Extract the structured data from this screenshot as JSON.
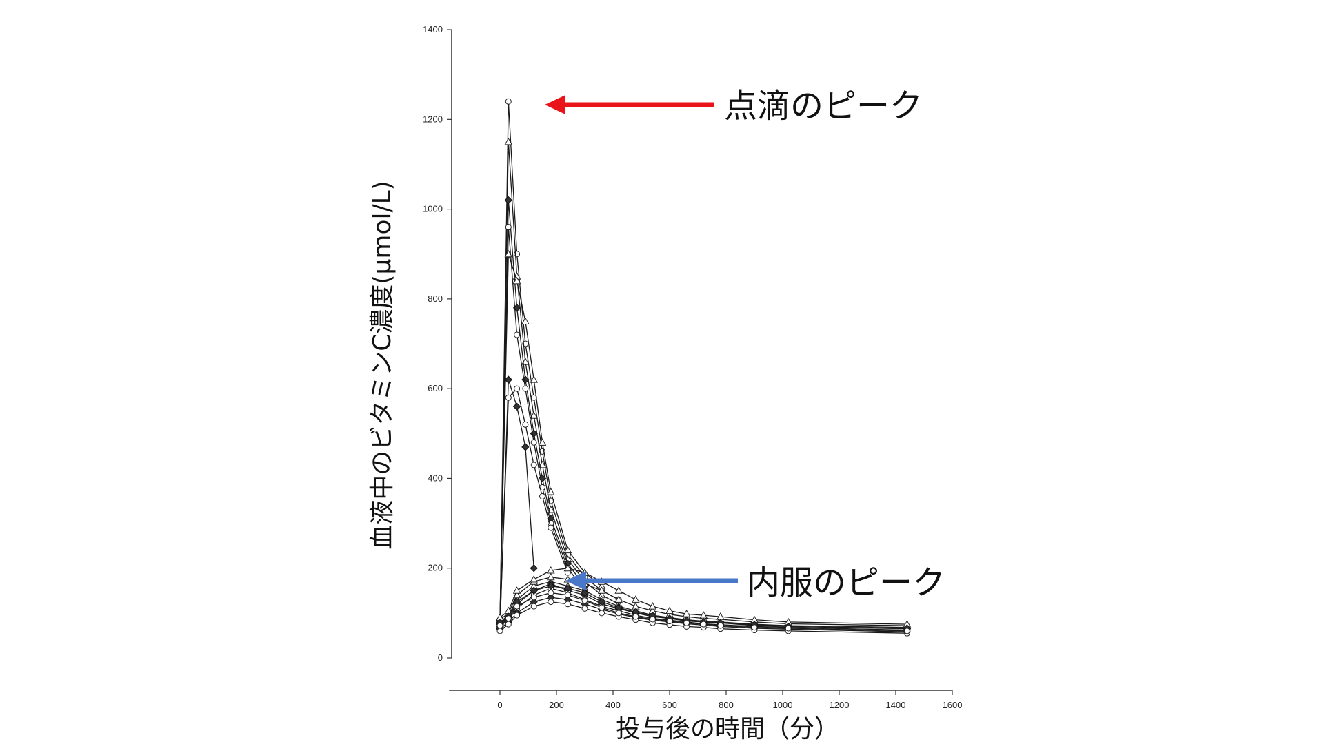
{
  "chart_data": {
    "type": "line",
    "ylabel": "血液中のビタミンC濃度(μmol/L)",
    "xlabel": "投与後の時間（分）",
    "xlim": [
      -180,
      1600
    ],
    "ylim": [
      0,
      1400
    ],
    "x_ticks": [
      "0",
      "200",
      "400",
      "600",
      "800",
      "1000",
      "1200",
      "1400",
      "1600"
    ],
    "y_ticks": [
      "0",
      "200",
      "400",
      "600",
      "800",
      "1000",
      "1200",
      "1400"
    ],
    "grid": false,
    "legend": "none",
    "annotations": [
      {
        "text": "点滴のピーク",
        "arrow_color": "#e8141a",
        "target_x": 30,
        "target_y": 1240
      },
      {
        "text": "内服のピーク",
        "arrow_color": "#4a78c8",
        "target_x": 240,
        "target_y": 180
      }
    ],
    "series": [
      {
        "x": [
          0,
          30,
          60,
          90,
          120,
          150,
          180,
          240,
          300,
          360,
          420
        ],
        "y": [
          80,
          1240,
          900,
          700,
          580,
          460,
          350,
          230,
          180,
          150,
          130
        ]
      },
      {
        "x": [
          0,
          30,
          60,
          90,
          120,
          150,
          180,
          240,
          300,
          360,
          420
        ],
        "y": [
          75,
          1150,
          850,
          660,
          540,
          430,
          330,
          220,
          170,
          140,
          120
        ]
      },
      {
        "x": [
          0,
          30,
          60,
          90,
          120,
          150,
          180,
          240,
          300
        ],
        "y": [
          70,
          1020,
          780,
          620,
          500,
          400,
          310,
          210,
          160
        ]
      },
      {
        "x": [
          0,
          30,
          60,
          90,
          120,
          150,
          180,
          240,
          300
        ],
        "y": [
          85,
          960,
          720,
          600,
          480,
          380,
          300,
          200,
          150
        ]
      },
      {
        "x": [
          0,
          30,
          60,
          90,
          120,
          150,
          180,
          240,
          300,
          360
        ],
        "y": [
          90,
          900,
          840,
          750,
          620,
          480,
          370,
          240,
          190,
          160
        ]
      },
      {
        "x": [
          0,
          30,
          60,
          90,
          120
        ],
        "y": [
          65,
          620,
          560,
          470,
          200
        ]
      },
      {
        "x": [
          0,
          30,
          60,
          90,
          120,
          150,
          180,
          240
        ],
        "y": [
          70,
          580,
          600,
          520,
          430,
          360,
          290,
          190
        ]
      },
      {
        "x": [
          0,
          30,
          60,
          120,
          180,
          240,
          300,
          360,
          420,
          480,
          540,
          600,
          660,
          720,
          780,
          900,
          1020,
          1440
        ],
        "y": [
          80,
          95,
          130,
          160,
          170,
          160,
          150,
          130,
          115,
          105,
          95,
          90,
          85,
          82,
          80,
          75,
          72,
          68
        ]
      },
      {
        "x": [
          0,
          30,
          60,
          120,
          180,
          240,
          300,
          360,
          420,
          480,
          540,
          600,
          660,
          720,
          780,
          900,
          1020,
          1440
        ],
        "y": [
          75,
          90,
          120,
          150,
          165,
          150,
          140,
          120,
          110,
          100,
          92,
          88,
          82,
          80,
          78,
          72,
          70,
          65
        ]
      },
      {
        "x": [
          0,
          30,
          60,
          120,
          180,
          240,
          300,
          360,
          420,
          480,
          540,
          600,
          660,
          720,
          780,
          900,
          1020,
          1440
        ],
        "y": [
          70,
          85,
          110,
          140,
          155,
          145,
          130,
          115,
          105,
          95,
          88,
          84,
          80,
          76,
          74,
          70,
          68,
          62
        ]
      },
      {
        "x": [
          0,
          30,
          60,
          120,
          180,
          240,
          300,
          360,
          420,
          480,
          540,
          600,
          660,
          720,
          780,
          900,
          1020,
          1440
        ],
        "y": [
          85,
          100,
          140,
          170,
          180,
          175,
          165,
          150,
          130,
          115,
          105,
          97,
          92,
          88,
          86,
          80,
          76,
          72
        ]
      },
      {
        "x": [
          0,
          30,
          60,
          120,
          180,
          240,
          300,
          360,
          420,
          480,
          540,
          600,
          660,
          720,
          780,
          900,
          1020,
          1440
        ],
        "y": [
          65,
          80,
          100,
          125,
          135,
          130,
          120,
          108,
          98,
          90,
          84,
          80,
          76,
          73,
          70,
          66,
          64,
          58
        ]
      },
      {
        "x": [
          0,
          30,
          60,
          120,
          180,
          240,
          300,
          360,
          420,
          480,
          540,
          600,
          660,
          720,
          780,
          900,
          1020,
          1440
        ],
        "y": [
          60,
          75,
          95,
          115,
          125,
          120,
          110,
          100,
          92,
          85,
          78,
          74,
          70,
          68,
          65,
          62,
          60,
          55
        ]
      },
      {
        "x": [
          0,
          30,
          60,
          120,
          180,
          240,
          300,
          360,
          420,
          480,
          540,
          600,
          660,
          720,
          780,
          900,
          1020,
          1440
        ],
        "y": [
          90,
          105,
          150,
          175,
          195,
          200,
          190,
          170,
          150,
          130,
          115,
          105,
          98,
          95,
          92,
          85,
          80,
          75
        ]
      },
      {
        "x": [
          0,
          30,
          60,
          120,
          180,
          240,
          300,
          360,
          420,
          480,
          540,
          600,
          660,
          720,
          780,
          900,
          1020,
          1440
        ],
        "y": [
          78,
          92,
          125,
          150,
          160,
          155,
          145,
          125,
          112,
          102,
          94,
          88,
          84,
          80,
          78,
          74,
          70,
          66
        ]
      },
      {
        "x": [
          0,
          30,
          60,
          120,
          180,
          240,
          300,
          360,
          420,
          480,
          540,
          600,
          660,
          720,
          780,
          900,
          1020,
          1440
        ],
        "y": [
          72,
          88,
          115,
          135,
          145,
          140,
          128,
          112,
          100,
          92,
          86,
          82,
          78,
          75,
          72,
          68,
          66,
          60
        ]
      }
    ]
  }
}
